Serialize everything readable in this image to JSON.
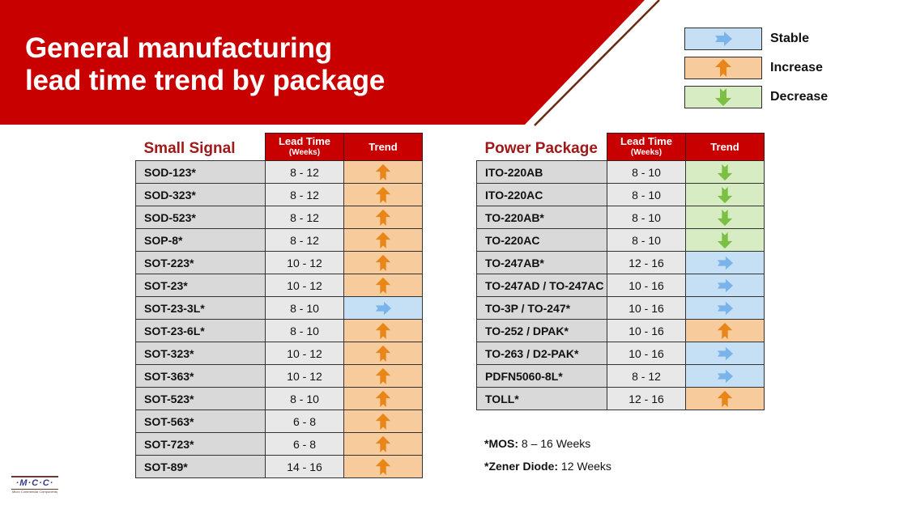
{
  "header": {
    "title_line1": "General manufacturing",
    "title_line2": "lead time trend by package",
    "banner_color": "#c80000"
  },
  "legend": [
    {
      "label": "Stable",
      "icon": "arrow-right-icon",
      "color": "#c5e0f5"
    },
    {
      "label": "Increase",
      "icon": "arrow-up-icon",
      "color": "#f8cb9c"
    },
    {
      "label": "Decrease",
      "icon": "arrow-down-icon",
      "color": "#d8ecc4"
    }
  ],
  "small_signal": {
    "title": "Small Signal",
    "col_lead": "Lead Time",
    "col_lead_sub": "(Weeks)",
    "col_trend": "Trend",
    "rows": [
      {
        "name": "SOD-123*",
        "lead": "8 - 12",
        "trend": "increase"
      },
      {
        "name": "SOD-323*",
        "lead": "8 - 12",
        "trend": "increase"
      },
      {
        "name": "SOD-523*",
        "lead": "8 - 12",
        "trend": "increase"
      },
      {
        "name": "SOP-8*",
        "lead": "8 - 12",
        "trend": "increase"
      },
      {
        "name": "SOT-223*",
        "lead": "10 - 12",
        "trend": "increase"
      },
      {
        "name": "SOT-23*",
        "lead": "10 - 12",
        "trend": "increase"
      },
      {
        "name": "SOT-23-3L*",
        "lead": "8 - 10",
        "trend": "stable"
      },
      {
        "name": "SOT-23-6L*",
        "lead": "8 - 10",
        "trend": "increase"
      },
      {
        "name": "SOT-323*",
        "lead": "10 - 12",
        "trend": "increase"
      },
      {
        "name": "SOT-363*",
        "lead": "10 - 12",
        "trend": "increase"
      },
      {
        "name": "SOT-523*",
        "lead": "8 - 10",
        "trend": "increase"
      },
      {
        "name": "SOT-563*",
        "lead": "6 - 8",
        "trend": "increase"
      },
      {
        "name": "SOT-723*",
        "lead": "6 - 8",
        "trend": "increase"
      },
      {
        "name": "SOT-89*",
        "lead": "14 - 16",
        "trend": "increase"
      }
    ]
  },
  "power_package": {
    "title": "Power Package",
    "col_lead": "Lead Time",
    "col_lead_sub": "(Weeks)",
    "col_trend": "Trend",
    "rows": [
      {
        "name": "ITO-220AB",
        "lead": "8 - 10",
        "trend": "decrease"
      },
      {
        "name": "ITO-220AC",
        "lead": "8 - 10",
        "trend": "decrease"
      },
      {
        "name": "TO-220AB*",
        "lead": "8 - 10",
        "trend": "decrease"
      },
      {
        "name": "TO-220AC",
        "lead": "8 - 10",
        "trend": "decrease"
      },
      {
        "name": "TO-247AB*",
        "lead": "12 - 16",
        "trend": "stable"
      },
      {
        "name": "TO-247AD / TO-247AC",
        "lead": "10 - 16",
        "trend": "stable"
      },
      {
        "name": "TO-3P / TO-247*",
        "lead": "10 - 16",
        "trend": "stable"
      },
      {
        "name": "TO-252 / DPAK*",
        "lead": "10 - 16",
        "trend": "increase"
      },
      {
        "name": "TO-263 / D2-PAK*",
        "lead": "10 - 16",
        "trend": "stable"
      },
      {
        "name": "PDFN5060-8L*",
        "lead": "8 - 12",
        "trend": "stable"
      },
      {
        "name": "TOLL*",
        "lead": "12 - 16",
        "trend": "increase"
      }
    ]
  },
  "notes": [
    {
      "label": "*MOS:",
      "value": " 8 – 16 Weeks"
    },
    {
      "label": "*Zener Diode:",
      "value": " 12 Weeks"
    }
  ],
  "logo": {
    "mark": "·M·C·C·",
    "subtitle": "Micro Commercial Components"
  },
  "trend_colors": {
    "stable": {
      "bg": "#c5e0f5",
      "fg": "#7ab4ea"
    },
    "increase": {
      "bg": "#f8cb9c",
      "fg": "#e9861a"
    },
    "decrease": {
      "bg": "#d8ecc4",
      "fg": "#7cbf45"
    }
  }
}
